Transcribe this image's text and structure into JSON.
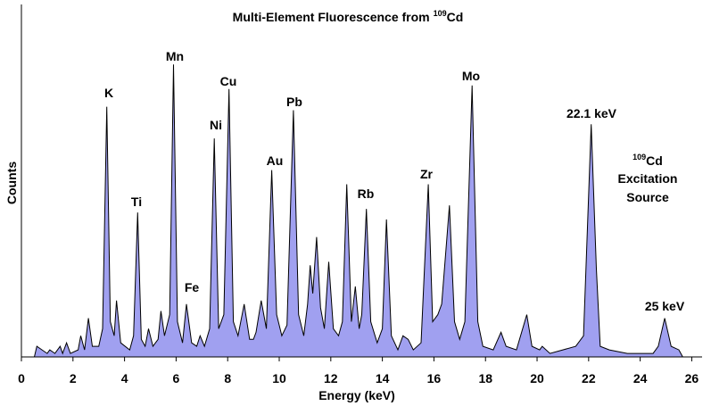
{
  "chart_data": {
    "type": "area",
    "title": "Multi-Element Fluorescence from",
    "title_isotope_mass": "109",
    "title_isotope": "Cd",
    "xlabel": "Energy (keV)",
    "ylabel": "Counts",
    "x": [
      0.5,
      0.6,
      0.8,
      1.0,
      1.1,
      1.3,
      1.5,
      1.6,
      1.75,
      1.9,
      2.2,
      2.3,
      2.45,
      2.6,
      2.75,
      3.0,
      3.15,
      3.31,
      3.45,
      3.6,
      3.69,
      3.85,
      4.2,
      4.35,
      4.51,
      4.65,
      4.8,
      4.93,
      5.1,
      5.3,
      5.41,
      5.55,
      5.75,
      5.9,
      6.05,
      6.25,
      6.4,
      6.6,
      6.8,
      6.93,
      7.1,
      7.3,
      7.48,
      7.65,
      7.85,
      8.05,
      8.22,
      8.4,
      8.64,
      8.85,
      9.0,
      9.1,
      9.3,
      9.5,
      9.71,
      9.9,
      10.1,
      10.3,
      10.55,
      10.75,
      10.95,
      11.1,
      11.2,
      11.3,
      11.45,
      11.6,
      11.75,
      11.92,
      12.1,
      12.3,
      12.45,
      12.62,
      12.8,
      12.95,
      13.1,
      13.2,
      13.38,
      13.55,
      13.8,
      14.0,
      14.16,
      14.35,
      14.6,
      14.8,
      15.0,
      15.2,
      15.5,
      15.78,
      15.95,
      16.15,
      16.3,
      16.6,
      16.8,
      17.0,
      17.2,
      17.48,
      17.7,
      17.9,
      18.3,
      18.6,
      18.8,
      19.2,
      19.6,
      19.8,
      20.1,
      20.2,
      20.5,
      21.0,
      21.5,
      21.8,
      22.1,
      22.3,
      22.45,
      22.8,
      23.5,
      24.0,
      24.5,
      24.7,
      24.95,
      25.2,
      25.5,
      25.65
    ],
    "values": [
      0,
      3,
      2,
      1,
      2,
      1,
      3,
      1,
      4,
      1,
      2,
      6,
      2,
      11,
      3,
      3,
      8,
      71,
      10,
      6,
      16,
      4,
      2,
      6,
      41,
      5,
      3,
      8,
      3,
      5,
      13,
      6,
      12,
      83,
      10,
      4,
      15,
      4,
      3,
      6,
      3,
      8,
      62,
      8,
      12,
      76,
      10,
      6,
      15,
      5,
      5,
      7,
      16,
      8,
      53,
      12,
      6,
      9,
      70,
      12,
      6,
      15,
      26,
      18,
      34,
      14,
      8,
      27,
      8,
      6,
      10,
      49,
      10,
      20,
      8,
      12,
      42,
      10,
      4,
      8,
      39,
      6,
      2,
      6,
      5,
      2,
      4,
      49,
      10,
      12,
      15,
      43,
      10,
      5,
      10,
      77,
      10,
      3,
      2,
      7,
      3,
      2,
      12,
      3,
      2,
      3,
      1,
      2,
      3,
      6,
      66,
      25,
      3,
      2,
      1,
      1,
      1,
      3,
      11,
      3,
      2,
      0
    ],
    "color": "#a0a0f0",
    "xlim": [
      0,
      26.4
    ],
    "ylim": [
      0,
      100
    ],
    "xticks": [
      0,
      2,
      4,
      6,
      8,
      10,
      12,
      14,
      16,
      18,
      20,
      22,
      24,
      26
    ],
    "peak_labels": [
      "K",
      "Ti",
      "Mn",
      "Fe",
      "Ni",
      "Cu",
      "Au",
      "Pb",
      "Rb",
      "Zr",
      "Mo",
      "22.1 keV",
      "25 keV"
    ],
    "source_label": {
      "mass": "109",
      "element": "Cd",
      "line1": "Excitation",
      "line2": "Source"
    }
  }
}
